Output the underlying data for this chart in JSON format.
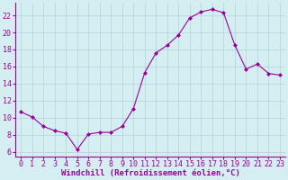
{
  "x": [
    0,
    1,
    2,
    3,
    4,
    5,
    6,
    7,
    8,
    9,
    10,
    11,
    12,
    13,
    14,
    15,
    16,
    17,
    18,
    19,
    20,
    21,
    22,
    23
  ],
  "y": [
    10.7,
    10.1,
    9.0,
    8.5,
    8.2,
    6.3,
    8.1,
    8.3,
    8.3,
    9.0,
    11.1,
    15.3,
    17.6,
    18.5,
    19.7,
    21.7,
    22.4,
    22.7,
    22.3,
    18.5,
    15.7,
    16.3,
    15.2,
    15.0
  ],
  "line_color": "#9b009b",
  "marker": "D",
  "marker_size": 2.0,
  "bg_color": "#d5eef2",
  "grid_color": "#b0d4dc",
  "xlabel": "Windchill (Refroidissement éolien,°C)",
  "xlabel_color": "#9b009b",
  "xlabel_fontsize": 6.5,
  "ylabel_ticks": [
    6,
    8,
    10,
    12,
    14,
    16,
    18,
    20,
    22
  ],
  "xlim": [
    -0.5,
    23.5
  ],
  "ylim": [
    5.5,
    23.5
  ],
  "tick_fontsize": 6.0,
  "tick_color": "#9b009b",
  "spine_color": "#9b009b"
}
